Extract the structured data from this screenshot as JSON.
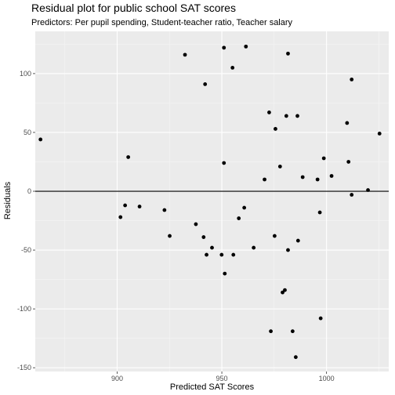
{
  "chart_data": {
    "type": "scatter",
    "title": "Residual plot for public school SAT scores",
    "subtitle": "Predictors: Per pupil spending, Student-teacher ratio, Teacher salary",
    "xlabel": "Predicted SAT Scores",
    "ylabel": "Residuals",
    "xlim": [
      860.9,
      1029.7
    ],
    "ylim": [
      -153.2,
      135.9
    ],
    "x_ticks": [
      900,
      950,
      1000
    ],
    "x_tick_labels": [
      "900",
      "950",
      "1000"
    ],
    "x_minor_ticks": [
      875,
      925,
      975,
      1025
    ],
    "y_ticks": [
      -150,
      -100,
      -50,
      0,
      50,
      100
    ],
    "y_tick_labels": [
      "-150",
      "-100",
      "-50",
      "0",
      "50",
      "100"
    ],
    "y_minor_ticks": [
      -125,
      -75,
      -25,
      25,
      75,
      125
    ],
    "reference_line_y": 0,
    "grid": true,
    "colors": {
      "panel": "#ebebeb",
      "grid_major": "#ffffff",
      "grid_minor": "#f5f5f5",
      "point": "#000000",
      "tick_label": "#4d4d4d"
    },
    "points": [
      {
        "x": 863.4,
        "y": 44
      },
      {
        "x": 901.6,
        "y": -22
      },
      {
        "x": 903.8,
        "y": -12
      },
      {
        "x": 905.3,
        "y": 29
      },
      {
        "x": 910.7,
        "y": -13
      },
      {
        "x": 922.6,
        "y": -16
      },
      {
        "x": 925.1,
        "y": -38
      },
      {
        "x": 932.4,
        "y": 116
      },
      {
        "x": 937.6,
        "y": -28
      },
      {
        "x": 941.3,
        "y": -39
      },
      {
        "x": 942.0,
        "y": 91
      },
      {
        "x": 942.7,
        "y": -54
      },
      {
        "x": 945.3,
        "y": -48
      },
      {
        "x": 949.9,
        "y": -54
      },
      {
        "x": 951.0,
        "y": 122
      },
      {
        "x": 951.0,
        "y": 24
      },
      {
        "x": 951.4,
        "y": -70
      },
      {
        "x": 955.1,
        "y": 105
      },
      {
        "x": 955.5,
        "y": -54
      },
      {
        "x": 958.1,
        "y": -23
      },
      {
        "x": 960.7,
        "y": -14
      },
      {
        "x": 961.5,
        "y": 123
      },
      {
        "x": 965.2,
        "y": -48
      },
      {
        "x": 970.4,
        "y": 10
      },
      {
        "x": 972.6,
        "y": 67
      },
      {
        "x": 973.4,
        "y": -119
      },
      {
        "x": 975.2,
        "y": -38
      },
      {
        "x": 975.6,
        "y": 53
      },
      {
        "x": 977.8,
        "y": 21
      },
      {
        "x": 979.0,
        "y": -86
      },
      {
        "x": 980.1,
        "y": -84
      },
      {
        "x": 980.8,
        "y": 64
      },
      {
        "x": 981.6,
        "y": 117
      },
      {
        "x": 981.6,
        "y": -50
      },
      {
        "x": 983.8,
        "y": -119
      },
      {
        "x": 985.3,
        "y": -141
      },
      {
        "x": 986.1,
        "y": 64
      },
      {
        "x": 986.4,
        "y": -42
      },
      {
        "x": 988.6,
        "y": 12
      },
      {
        "x": 995.7,
        "y": 10
      },
      {
        "x": 996.8,
        "y": -18
      },
      {
        "x": 997.2,
        "y": -108
      },
      {
        "x": 998.7,
        "y": 28
      },
      {
        "x": 1002.4,
        "y": 13
      },
      {
        "x": 1009.8,
        "y": 58
      },
      {
        "x": 1010.5,
        "y": 25
      },
      {
        "x": 1012.0,
        "y": 95
      },
      {
        "x": 1012.0,
        "y": -3
      },
      {
        "x": 1019.8,
        "y": 1
      },
      {
        "x": 1025.3,
        "y": 49
      }
    ]
  }
}
